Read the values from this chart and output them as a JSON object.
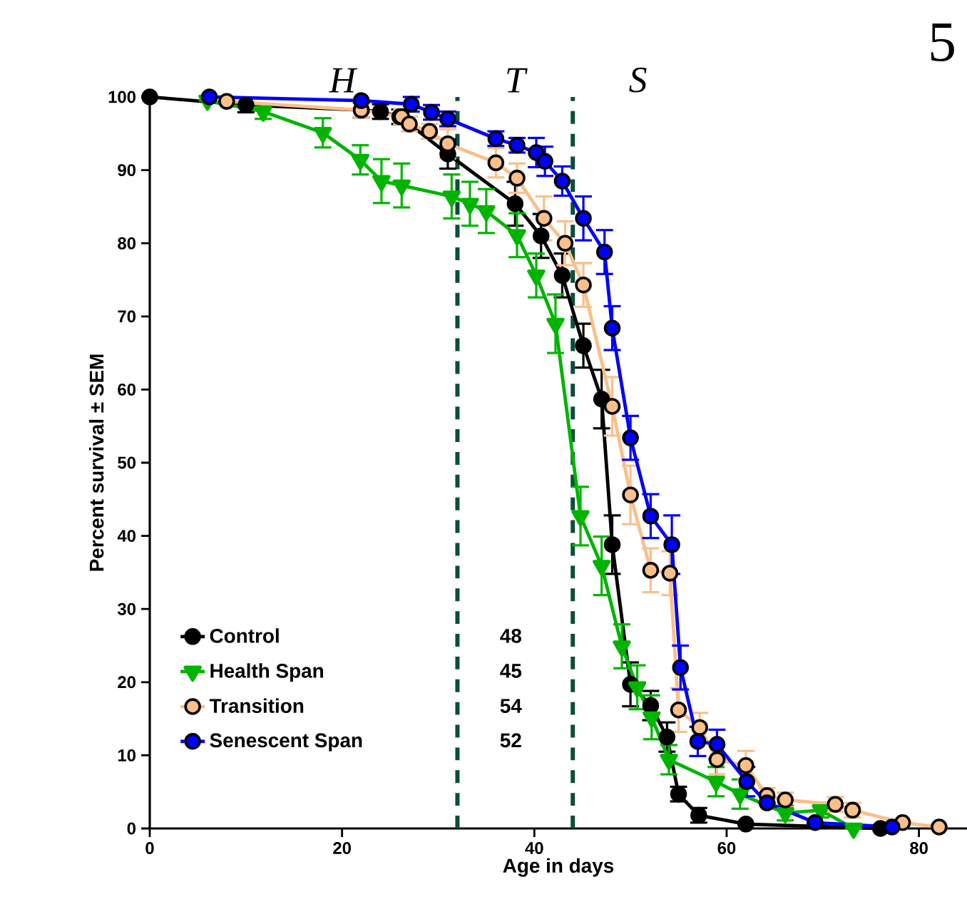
{
  "chart_data": {
    "type": "line",
    "xlabel": "Age in days",
    "ylabel": "Percent survival ± SEM",
    "xlim": [
      0,
      85
    ],
    "ylim": [
      0,
      100
    ],
    "xticks": [
      0,
      20,
      40,
      60,
      80
    ],
    "yticks": [
      0,
      10,
      20,
      30,
      40,
      50,
      60,
      70,
      80,
      90,
      100
    ],
    "legend": "left",
    "grid": false,
    "series": [
      {
        "name": "Control",
        "color": "#000000",
        "marker": "circle",
        "x": [
          0,
          10,
          22,
          24,
          26,
          31,
          38,
          40.7,
          42.9,
          45.1,
          47,
          48.1,
          50,
          52.1,
          53.8,
          55,
          57.1,
          62,
          76
        ],
        "values": [
          100,
          98.9,
          98.2,
          98,
          97.3,
          92.2,
          85.4,
          81,
          75.6,
          66,
          58.7,
          38.8,
          19.7,
          16.8,
          12.5,
          4.7,
          1.8,
          0.6,
          0
        ],
        "errors": [
          null,
          1,
          1,
          1,
          1,
          2,
          3,
          3,
          3,
          3,
          4,
          4,
          3,
          2,
          2,
          1,
          1,
          null,
          null
        ]
      },
      {
        "name": "Health Span",
        "color": "#00b400",
        "marker": "triangle",
        "x": [
          6,
          11.8,
          18,
          21.9,
          24.1,
          26.2,
          31.4,
          33.3,
          35,
          38.2,
          40.2,
          42.2,
          44.8,
          47,
          49.1,
          50.7,
          52.2,
          54,
          58.9,
          61.4,
          66.1,
          69.8,
          73.2
        ],
        "values": [
          99.5,
          98,
          95.1,
          91.4,
          88.5,
          87.9,
          86.4,
          85.4,
          84.4,
          81.1,
          75.6,
          69,
          42.7,
          35.9,
          24.9,
          19.3,
          15.2,
          9.4,
          6.4,
          4.7,
          2.1,
          2.5,
          0
        ],
        "errors": [
          null,
          1,
          2,
          2,
          3,
          3,
          3,
          3,
          3,
          3,
          3,
          4,
          4,
          4,
          3,
          3,
          3,
          2,
          2,
          2,
          1,
          1,
          null
        ]
      },
      {
        "name": "Transition",
        "color": "#fbbf8a",
        "marker": "circle",
        "x": [
          8,
          22,
          26.2,
          27,
          29.1,
          31,
          36,
          38.2,
          41,
          43.2,
          45.1,
          48.1,
          50,
          52.1,
          54.1,
          55,
          57.2,
          59,
          62,
          64.2,
          66.1,
          71.3,
          73.1,
          78.3,
          82.1
        ],
        "values": [
          99.4,
          98.2,
          97.3,
          96.3,
          95.3,
          93.6,
          91,
          88.9,
          83.4,
          80,
          74.3,
          57.7,
          45.6,
          35.3,
          34.9,
          16.2,
          13.8,
          9.4,
          8.6,
          4.5,
          3.9,
          3.3,
          2.5,
          0.8,
          0.2
        ],
        "errors": [
          null,
          1,
          1,
          1,
          1,
          2,
          2,
          2,
          3,
          3,
          3,
          4,
          4,
          3,
          3,
          3,
          2,
          2,
          2,
          1,
          1,
          1,
          1,
          null,
          null
        ]
      },
      {
        "name": "Senescent Span",
        "color": "#0000ff",
        "marker": "circle",
        "x": [
          6.2,
          22,
          27.2,
          29.3,
          31,
          36,
          38.2,
          40.2,
          41.1,
          42.9,
          45.1,
          47.3,
          48.1,
          50,
          52.1,
          54.3,
          55.2,
          57,
          59,
          62.1,
          64.2,
          69.2,
          77.2
        ],
        "values": [
          100,
          99.5,
          99,
          97.9,
          97,
          94.3,
          93.4,
          92.4,
          91.2,
          88.5,
          83.4,
          78.8,
          68.4,
          53.4,
          42.7,
          38.8,
          22,
          11.9,
          11.5,
          6.4,
          3.5,
          0.8,
          0.2
        ],
        "errors": [
          null,
          null,
          1,
          1,
          1,
          1,
          1,
          2,
          2,
          2,
          3,
          3,
          3,
          3,
          3,
          4,
          3,
          2,
          2,
          2,
          null,
          null,
          null
        ]
      }
    ],
    "ref_lines": [
      {
        "axis": "x",
        "value": 32,
        "color": "#0b4d3c",
        "line_style": "dashed"
      },
      {
        "axis": "x",
        "value": 44,
        "color": "#0b4d3c",
        "line_style": "dashed"
      }
    ],
    "annotations": [
      "48",
      "45",
      "54",
      "52",
      "H",
      "T",
      "S",
      "5"
    ]
  }
}
